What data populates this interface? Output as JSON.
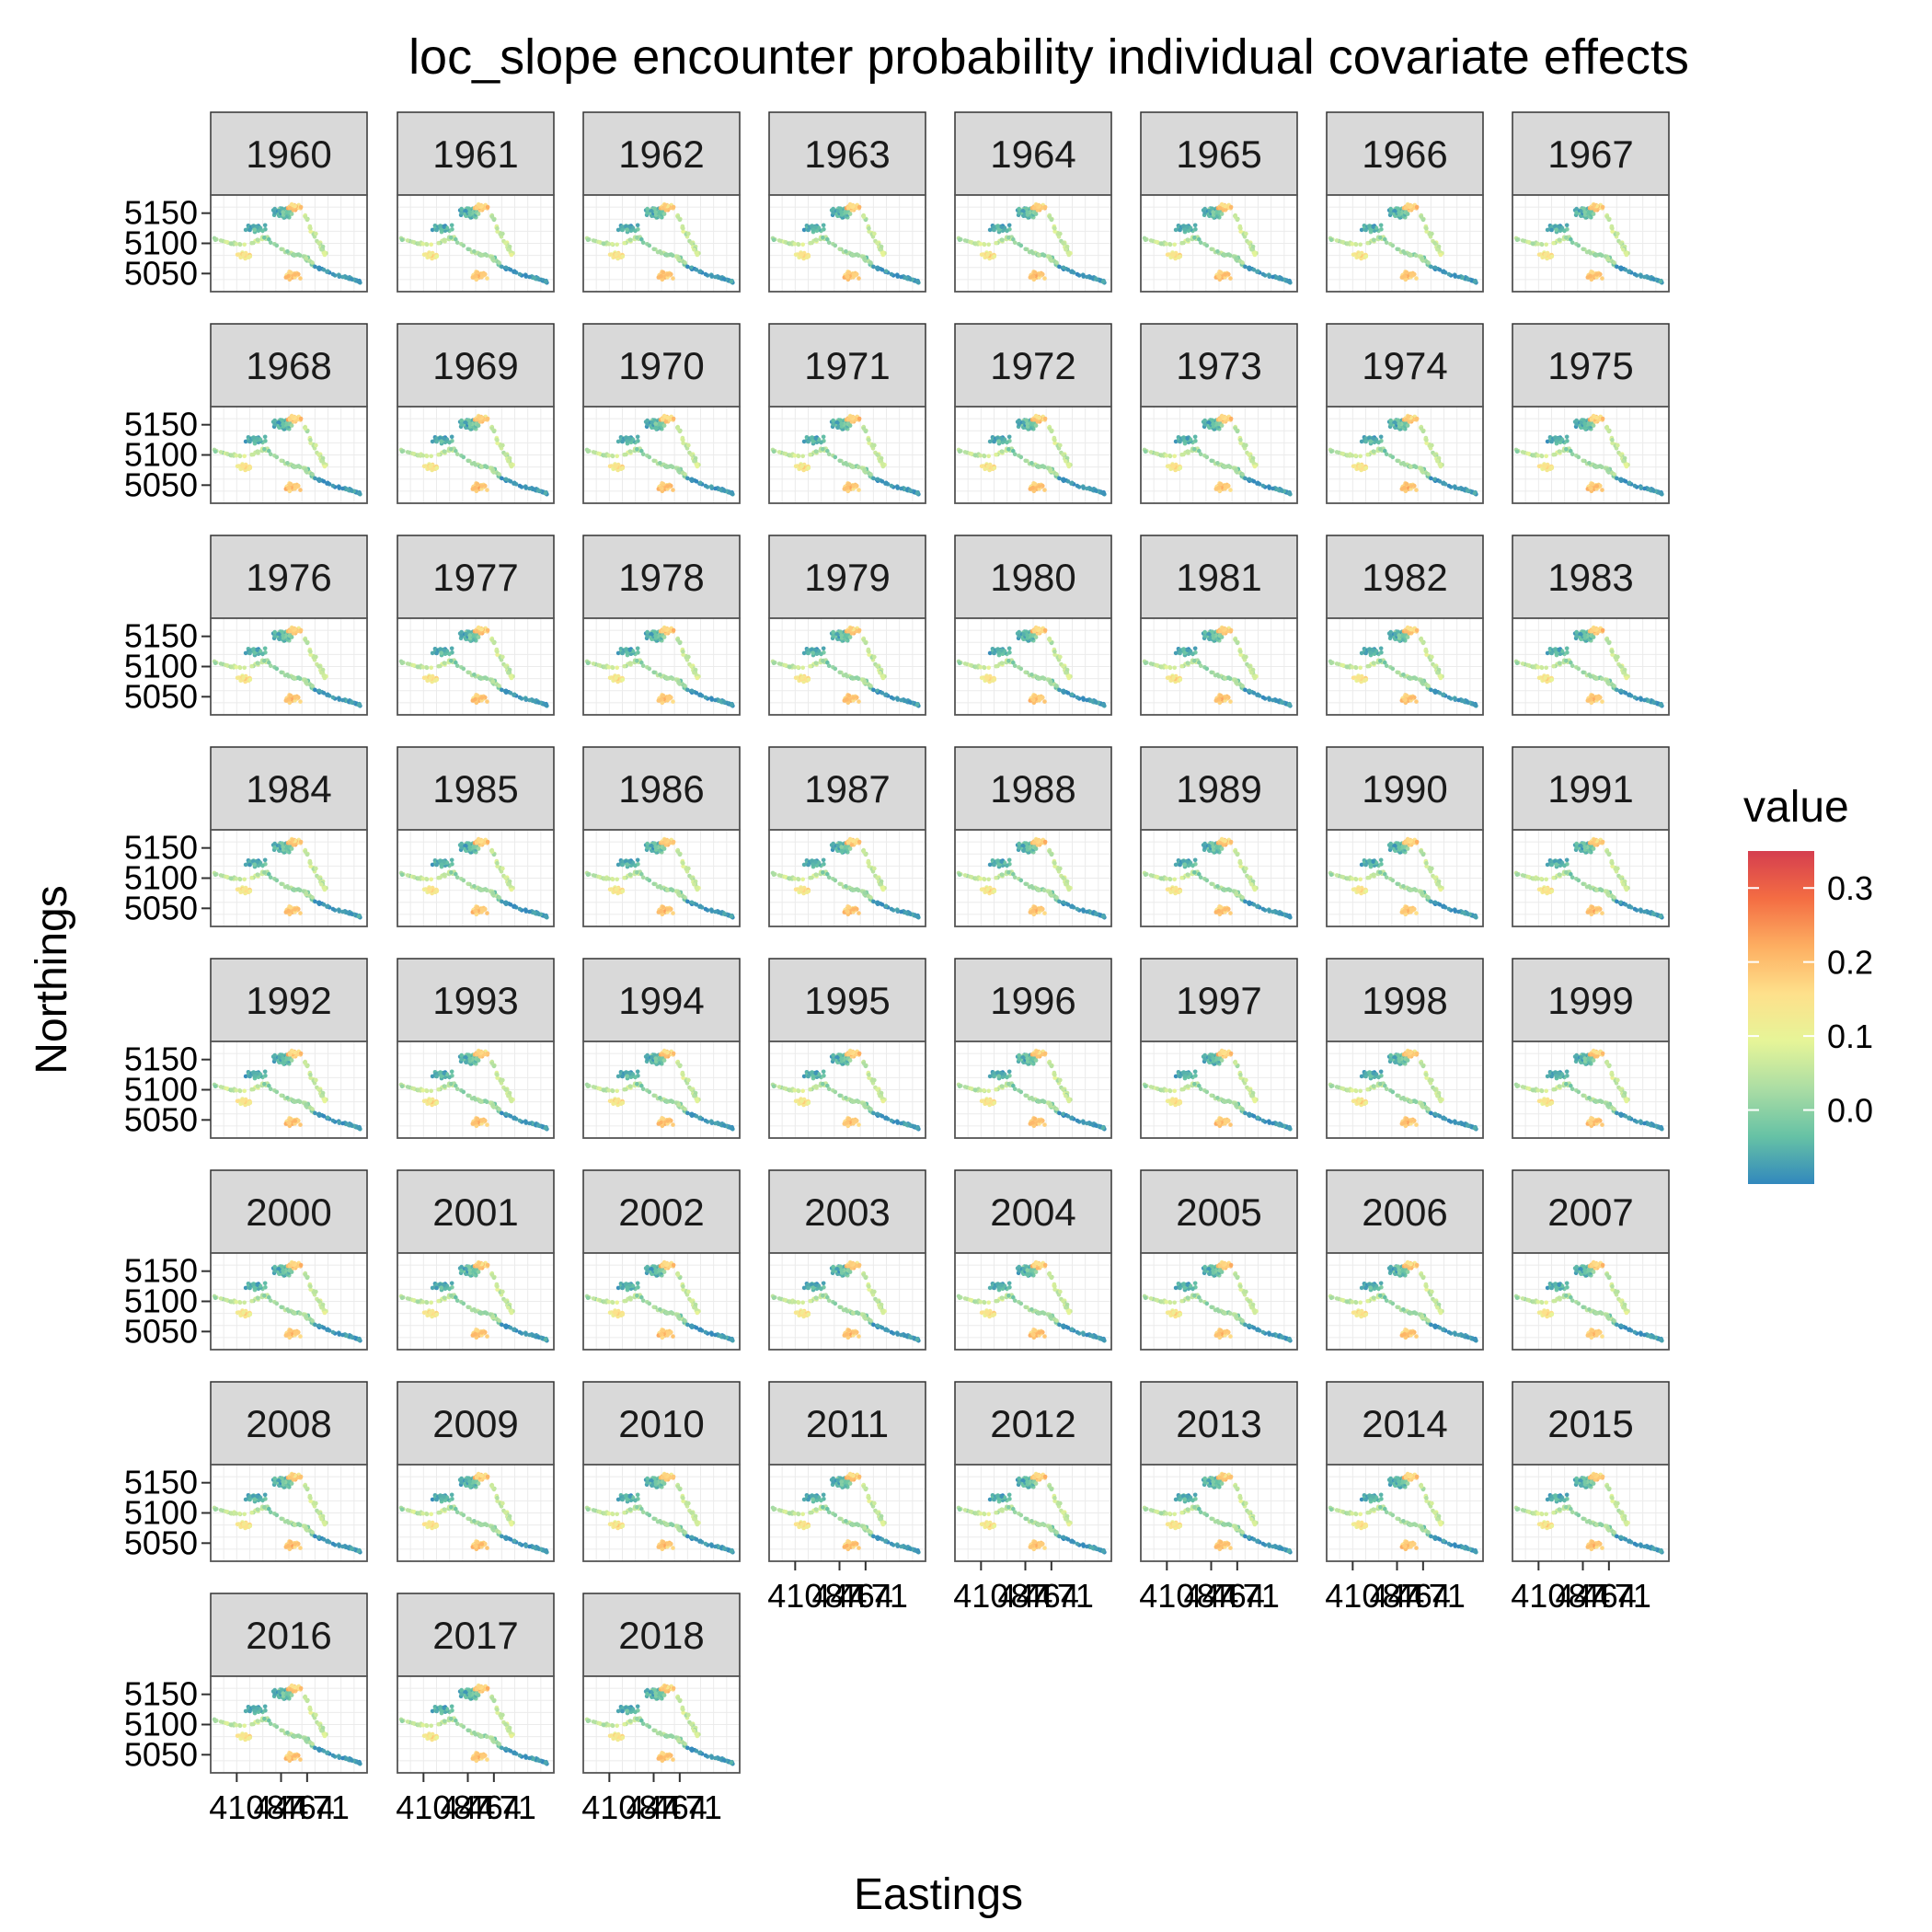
{
  "chart_data": {
    "type": "scatter",
    "title": "loc_slope encounter probability individual covariate effects",
    "xlabel": "Eastings",
    "ylabel": "Northings",
    "facet_variable": "year",
    "panels": [
      "1960",
      "1961",
      "1962",
      "1963",
      "1964",
      "1965",
      "1966",
      "1967",
      "1968",
      "1969",
      "1970",
      "1971",
      "1972",
      "1973",
      "1974",
      "1975",
      "1976",
      "1977",
      "1978",
      "1979",
      "1980",
      "1981",
      "1982",
      "1983",
      "1984",
      "1985",
      "1986",
      "1987",
      "1988",
      "1989",
      "1990",
      "1991",
      "1992",
      "1993",
      "1994",
      "1995",
      "1996",
      "1997",
      "1998",
      "1999",
      "2000",
      "2001",
      "2002",
      "2003",
      "2004",
      "2005",
      "2006",
      "2007",
      "2008",
      "2009",
      "2010",
      "2011",
      "2012",
      "2013",
      "2014",
      "2015",
      "2016",
      "2017",
      "2018"
    ],
    "xlim": [
      390,
      510
    ],
    "ylim": [
      5020,
      5180
    ],
    "y_ticks": [
      5050,
      5100,
      5150
    ],
    "y_tick_labels": [
      "5050",
      "5100",
      "5150"
    ],
    "x_ticks": [
      410,
      444,
      464
    ],
    "x_tick_labels": [
      "410",
      "444",
      "464"
    ],
    "x_tick_labels_secondary": [
      "71",
      "87"
    ],
    "grid": true,
    "theme": "bw",
    "legend": {
      "title": "value",
      "position": "right",
      "ticks": [
        0.0,
        0.1,
        0.2,
        0.3
      ],
      "tick_labels": [
        "0.0",
        "0.1",
        "0.2",
        "0.3"
      ],
      "range": [
        -0.1,
        0.35
      ],
      "palette": [
        "#3288bd",
        "#66c2a5",
        "#abdda4",
        "#e6f598",
        "#fee08b",
        "#fdae61",
        "#f46d43",
        "#d53e4f"
      ]
    },
    "point_groups": [
      {
        "region": "north-central cluster",
        "dominant_value": 0.2
      },
      {
        "region": "central network",
        "dominant_value": -0.05
      },
      {
        "region": "south lobe",
        "dominant_value": 0.18
      },
      {
        "region": "south-east tail",
        "dominant_value": -0.08
      },
      {
        "region": "west arm",
        "dominant_value": 0.05
      }
    ]
  }
}
